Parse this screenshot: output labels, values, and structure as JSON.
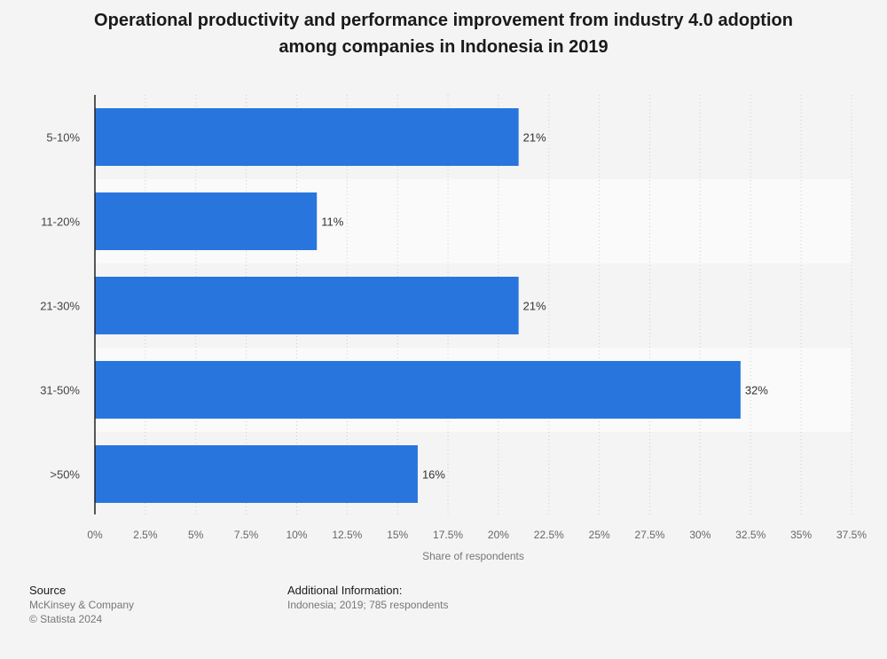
{
  "chart_data": {
    "type": "bar",
    "orientation": "horizontal",
    "title_lines": [
      "Operational productivity and performance improvement from industry 4.0 adoption",
      "among companies in Indonesia in 2019"
    ],
    "categories": [
      "5-10%",
      "11-20%",
      "21-30%",
      "31-50%",
      ">50%"
    ],
    "values": [
      21,
      11,
      21,
      32,
      16
    ],
    "data_labels": [
      "21%",
      "11%",
      "21%",
      "32%",
      "16%"
    ],
    "xlabel": "Share of respondents",
    "ylabel": "",
    "xlim": [
      0,
      37.5
    ],
    "x_ticks": [
      0,
      2.5,
      5,
      7.5,
      10,
      12.5,
      15,
      17.5,
      20,
      22.5,
      25,
      27.5,
      30,
      32.5,
      35,
      37.5
    ],
    "x_tick_labels": [
      "0%",
      "2.5%",
      "5%",
      "7.5%",
      "10%",
      "12.5%",
      "15%",
      "17.5%",
      "20%",
      "22.5%",
      "25%",
      "27.5%",
      "30%",
      "32.5%",
      "35%",
      "37.5%"
    ],
    "grid": true,
    "bar_color": "#2876dd"
  },
  "footer": {
    "source_heading": "Source",
    "source_lines": [
      "McKinsey & Company",
      "© Statista 2024"
    ],
    "info_heading": "Additional Information:",
    "info_lines": [
      "Indonesia; 2019; 785 respondents"
    ]
  }
}
